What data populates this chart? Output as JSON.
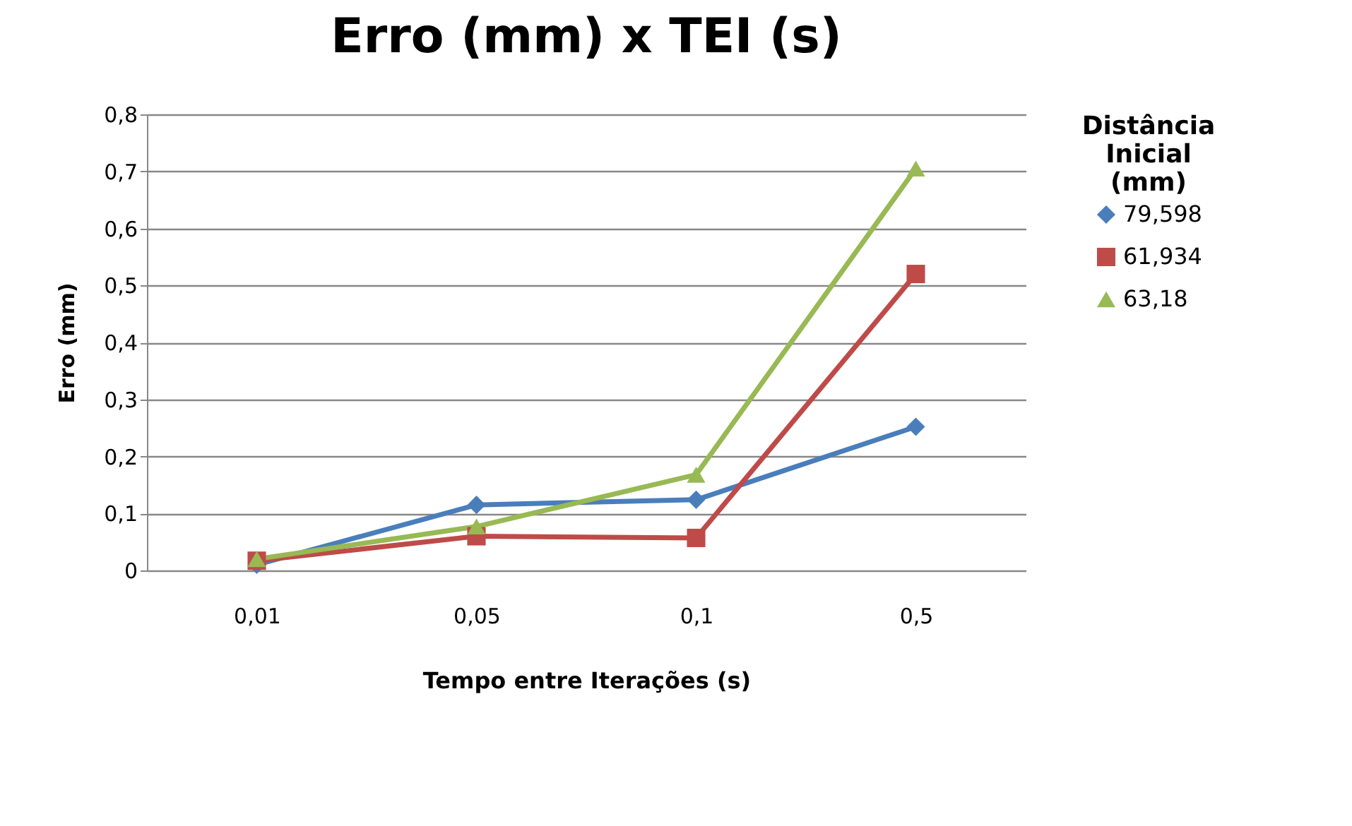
{
  "chart_data": {
    "type": "line",
    "title": "Erro (mm) x TEI (s)",
    "xlabel": "Tempo entre Iterações (s)",
    "ylabel": "Erro (mm)",
    "legend_title": "Distância Inicial (mm)",
    "categories": [
      "0,01",
      "0,05",
      "0,1",
      "0,5"
    ],
    "series": [
      {
        "name": "79,598",
        "color": "#4a7ebb",
        "marker": "diamond",
        "values": [
          0.01,
          0.115,
          0.124,
          0.252
        ]
      },
      {
        "name": "61,934",
        "color": "#be4b48",
        "marker": "square",
        "values": [
          0.017,
          0.06,
          0.057,
          0.52
        ]
      },
      {
        "name": "63,18",
        "color": "#98b954",
        "marker": "triangle",
        "values": [
          0.02,
          0.077,
          0.168,
          0.705
        ]
      }
    ],
    "ylim": [
      0,
      0.8
    ],
    "yticks": [
      0,
      {
        "value": 0.1,
        "label": "0,1"
      },
      {
        "value": 0.2,
        "label": "0,2"
      },
      {
        "value": 0.3,
        "label": "0,3"
      },
      {
        "value": 0.4,
        "label": "0,4"
      },
      {
        "value": 0.5,
        "label": "0,5"
      },
      {
        "value": 0.6,
        "label": "0,6"
      },
      {
        "value": 0.7,
        "label": "0,7"
      },
      {
        "value": 0.8,
        "label": "0,8"
      }
    ],
    "grid": "y",
    "legend": "right"
  }
}
